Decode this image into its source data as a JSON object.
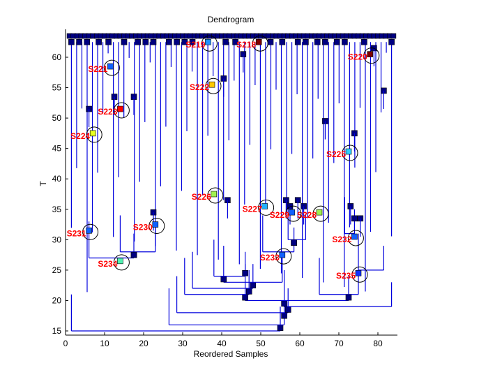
{
  "chart_data": {
    "type": "dendrogram",
    "title": "Dendrogram",
    "xlabel": "Reordered Samples",
    "ylabel": "T",
    "xlim": [
      0,
      85
    ],
    "ylim": [
      14.5,
      64.2
    ],
    "xticks": [
      0,
      10,
      20,
      30,
      40,
      50,
      60,
      70,
      80
    ],
    "yticks": [
      15,
      20,
      25,
      30,
      35,
      40,
      45,
      50,
      55,
      60
    ],
    "grid": false,
    "leaf_count": 84,
    "leaf_row_T": 63.5,
    "top_node_T": 62.5,
    "colors": {
      "link": "#0000dd",
      "node": "#000080",
      "label": "#ff0000",
      "axis": "#000000"
    },
    "top_nodes_x": [
      1.5,
      3.5,
      5.5,
      8.5,
      11,
      15,
      18.5,
      20.5,
      22.5,
      26.5,
      28.5,
      30.5,
      32.5,
      41,
      43.5,
      52.5,
      55.5,
      59.5,
      61.5,
      64.5,
      66.5,
      69.5,
      71.5,
      76.5,
      83.5
    ],
    "links": [
      {
        "x1": 1.5,
        "x2": 55,
        "y": 15,
        "node": 55,
        "ny": 15.5
      },
      {
        "x1": 26.5,
        "x2": 56,
        "y": 16,
        "node": 56,
        "ny": 17.5
      },
      {
        "x1": 28.5,
        "x2": 57,
        "y": 18,
        "node": 57,
        "ny": 18.5
      },
      {
        "x1": 56,
        "x2": 83.5,
        "y": 19,
        "node": 56,
        "ny": 19.5
      },
      {
        "x1": 46,
        "x2": 72.5,
        "y": 20,
        "node": 46,
        "ny": 20.5
      },
      {
        "x1": 30.5,
        "x2": 47,
        "y": 21,
        "node": 47,
        "ny": 21.5
      },
      {
        "x1": 32.5,
        "x2": 48,
        "y": 22,
        "node": 48,
        "ny": 22.5
      },
      {
        "x1": 40.5,
        "x2": 55.5,
        "y": 23,
        "node": 40.5,
        "ny": 23.5
      },
      {
        "x1": 38,
        "x2": 46,
        "y": 24,
        "node": 46,
        "ny": 24.5
      },
      {
        "x1": 65,
        "x2": 75,
        "y": 21,
        "node": 72.5,
        "ny": 20.5
      },
      {
        "x1": 75,
        "x2": 81.5,
        "y": 25,
        "node": null,
        "ny": null
      },
      {
        "x1": 6,
        "x2": 17.5,
        "y": 27,
        "node": 17.5,
        "ny": 27.5
      },
      {
        "x1": 14,
        "x2": 23,
        "y": 28,
        "node": 17.5,
        "ny": 27.5
      },
      {
        "x1": 50.5,
        "x2": 58.5,
        "y": 28,
        "node": 58.5,
        "ny": 29.5
      },
      {
        "x1": 57,
        "x2": 61.5,
        "y": 30,
        "node": 58.5,
        "ny": 29.5
      },
      {
        "x1": 71.5,
        "x2": 74,
        "y": 31,
        "node": 74,
        "ny": 33.5
      }
    ],
    "highlighted_nodes": [
      {
        "label": "S218",
        "x": 49.5,
        "T": 62.5,
        "color": "#800000"
      },
      {
        "label": "S219",
        "x": 36.5,
        "T": 62.5,
        "color": "#1e90ff"
      },
      {
        "label": "S220",
        "x": 78,
        "T": 60.5,
        "color": "#800000"
      },
      {
        "label": "S221",
        "x": 11.5,
        "T": 58.5,
        "color": "#1060ff"
      },
      {
        "label": "S222",
        "x": 37.5,
        "T": 55.5,
        "color": "#ffc800"
      },
      {
        "label": "S223",
        "x": 14,
        "T": 51.5,
        "color": "#ff0000"
      },
      {
        "label": "S224",
        "x": 7,
        "T": 47.5,
        "color": "#e8ff20"
      },
      {
        "label": "S225",
        "x": 72.5,
        "T": 44.5,
        "color": "#30d0ff"
      },
      {
        "label": "S226",
        "x": 38,
        "T": 37.5,
        "color": "#a0f050"
      },
      {
        "label": "S227",
        "x": 51,
        "T": 35.5,
        "color": "#20b0ff"
      },
      {
        "label": "S228",
        "x": 65,
        "T": 34.5,
        "color": "#a0f050"
      },
      {
        "label": "S229",
        "x": 58,
        "T": 34.5,
        "color": "#1060ff"
      },
      {
        "label": "S230",
        "x": 23,
        "T": 32.5,
        "color": "#1060ff"
      },
      {
        "label": "S231",
        "x": 6,
        "T": 31.5,
        "color": "#1060ff"
      },
      {
        "label": "S232",
        "x": 74,
        "T": 30.5,
        "color": "#1060ff"
      },
      {
        "label": "S233",
        "x": 55.5,
        "T": 27.5,
        "color": "#1060ff"
      },
      {
        "label": "S234",
        "x": 14,
        "T": 26.5,
        "color": "#50f0b0"
      },
      {
        "label": "S235",
        "x": 75,
        "T": 24.5,
        "color": "#1030ff"
      }
    ]
  }
}
